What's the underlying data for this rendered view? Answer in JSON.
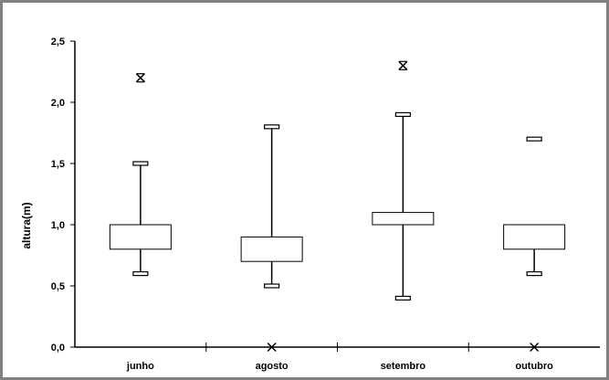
{
  "chart_data": {
    "type": "box",
    "ylabel": "altura(m)",
    "xlabel": "",
    "title": "",
    "ylim": [
      0,
      2.5
    ],
    "yticks": [
      "0,0",
      "0,5",
      "1,0",
      "1,5",
      "2,0",
      "2,5"
    ],
    "ytick_values": [
      0,
      0.5,
      1.0,
      1.5,
      2.0,
      2.5
    ],
    "categories": [
      "junho",
      "agosto",
      "setembro",
      "outubro"
    ],
    "boxes": [
      {
        "category": "junho",
        "whisker_low": 0.6,
        "q1": 0.8,
        "q3": 1.0,
        "whisker_high": 1.5,
        "outliers": [
          2.2
        ]
      },
      {
        "category": "agosto",
        "whisker_low": 0.5,
        "q1": 0.7,
        "q3": 0.9,
        "whisker_high": 1.8,
        "outliers": [
          0.0
        ]
      },
      {
        "category": "setembro",
        "whisker_low": 0.4,
        "q1": 1.0,
        "q3": 1.1,
        "whisker_high": 1.9,
        "outliers": [
          2.3
        ]
      },
      {
        "category": "outubro",
        "whisker_low": 0.6,
        "q1": 0.8,
        "q3": 1.0,
        "whisker_high": 1.7,
        "whisker_high_floating": true,
        "outliers": [
          0.0
        ]
      }
    ],
    "outlier_marker": "asterisk",
    "grid": false,
    "legend": "none",
    "colors": {
      "line": "#000000",
      "background": "#ffffff",
      "frame": "#808080"
    }
  }
}
